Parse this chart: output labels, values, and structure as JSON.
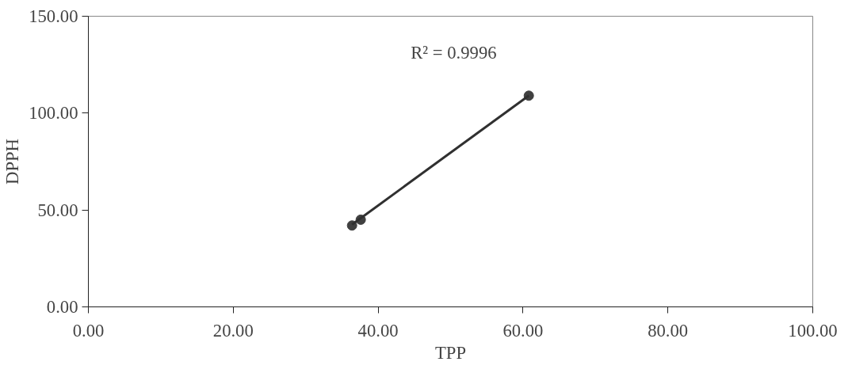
{
  "chart_data": {
    "type": "scatter",
    "xlabel": "TPP",
    "ylabel": "DPPH",
    "series": [
      {
        "color": "#404040",
        "x": [
          36.4,
          37.6,
          60.8
        ],
        "values": [
          42,
          45,
          109
        ],
        "marker": "circle"
      },
      {
        "type": "line",
        "color": "#303030",
        "x": [
          36.4,
          60.8
        ],
        "values": [
          42.5,
          109
        ],
        "marker": "none"
      }
    ],
    "annotations": [
      "R² = 0.9996"
    ],
    "xlim": [
      0,
      100
    ],
    "ylim": [
      0,
      150
    ],
    "xticks": [
      {
        "value": 0,
        "label": "0.00"
      },
      {
        "value": 20,
        "label": "20.00"
      },
      {
        "value": 40,
        "label": "40.00"
      },
      {
        "value": 60,
        "label": "60.00"
      },
      {
        "value": 80,
        "label": "80.00"
      },
      {
        "value": 100,
        "label": "100.00"
      }
    ],
    "yticks": [
      {
        "value": 0,
        "label": "0.00"
      },
      {
        "value": 50,
        "label": "50.00"
      },
      {
        "value": 100,
        "label": "100.00"
      },
      {
        "value": 150,
        "label": "150.00"
      }
    ],
    "grid": false
  }
}
